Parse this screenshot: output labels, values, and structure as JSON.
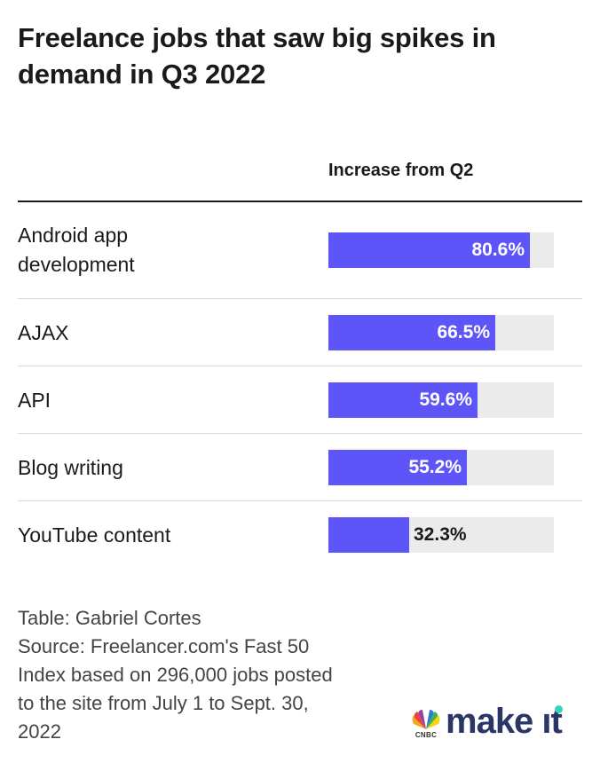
{
  "title": "Freelance jobs that saw big spikes in demand in Q3 2022",
  "chart_data": {
    "type": "bar",
    "orientation": "horizontal",
    "value_header": "Increase from Q2",
    "unit": "%",
    "xlim": [
      0,
      90
    ],
    "categories": [
      "Android app development",
      "AJAX",
      "API",
      "Blog writing",
      "YouTube content"
    ],
    "values": [
      80.6,
      66.5,
      59.6,
      55.2,
      32.3
    ],
    "value_labels": [
      "80.6%",
      "66.5%",
      "59.6%",
      "55.2%",
      "32.3%"
    ],
    "colors": {
      "bar": "#5e55f8",
      "track": "#ebebeb"
    }
  },
  "labels": {
    "row_1_line_1": "Android app",
    "row_1_line_2": "development"
  },
  "footnote": {
    "credit": "Table: Gabriel Cortes",
    "source_lines": [
      "Source: Freelancer.com's Fast 50",
      "Index based on 296,000 jobs posted",
      "to the site from July 1 to Sept. 30,",
      "2022"
    ]
  },
  "brand": {
    "network": "CNBC",
    "name": "make it",
    "name_head": "make ",
    "name_tail": "ıt"
  }
}
